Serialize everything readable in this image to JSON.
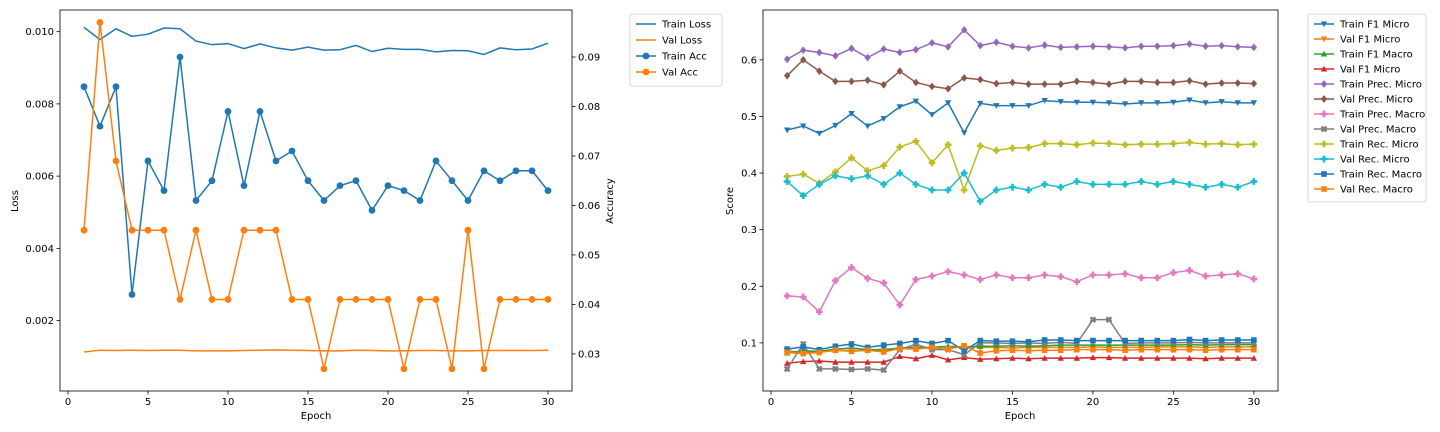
{
  "chart_data": [
    {
      "type": "line",
      "xlabel": "Epoch",
      "ylabel": "Loss",
      "y2label": "Accuracy",
      "xlim": [
        -0.5,
        31.5
      ],
      "ylim": [
        5e-05,
        0.0106
      ],
      "y2lim": [
        0.0225,
        0.0995
      ],
      "xticks": [
        0,
        5,
        10,
        15,
        20,
        25,
        30
      ],
      "yticks": [
        0.002,
        0.004,
        0.006,
        0.008,
        0.01
      ],
      "ytick_labels": [
        "0.002",
        "0.004",
        "0.006",
        "0.008",
        "0.010"
      ],
      "y2ticks": [
        0.03,
        0.04,
        0.05,
        0.06,
        0.07,
        0.08,
        0.09
      ],
      "y2tick_labels": [
        "0.03",
        "0.04",
        "0.05",
        "0.06",
        "0.07",
        "0.08",
        "0.09"
      ],
      "legend_position": "outside-right",
      "x": [
        1,
        2,
        3,
        4,
        5,
        6,
        7,
        8,
        9,
        10,
        11,
        12,
        13,
        14,
        15,
        16,
        17,
        18,
        19,
        20,
        21,
        22,
        23,
        24,
        25,
        26,
        27,
        28,
        29,
        30
      ],
      "series": [
        {
          "name": "Train Loss",
          "axis": "left",
          "color": "#1f77b4",
          "marker": "none",
          "values": [
            0.01012,
            0.00978,
            0.01008,
            0.00987,
            0.00993,
            0.0101,
            0.01008,
            0.00974,
            0.00964,
            0.00967,
            0.00953,
            0.00966,
            0.00955,
            0.00949,
            0.00957,
            0.00949,
            0.0095,
            0.00962,
            0.00945,
            0.00954,
            0.00951,
            0.00951,
            0.00944,
            0.00948,
            0.00947,
            0.00937,
            0.00955,
            0.0095,
            0.00952,
            0.00968
          ]
        },
        {
          "name": "Val Loss",
          "axis": "left",
          "color": "#ff7f0e",
          "marker": "none",
          "values": [
            0.00113,
            0.00118,
            0.00117,
            0.00118,
            0.00117,
            0.00118,
            0.00118,
            0.00116,
            0.00116,
            0.00116,
            0.00117,
            0.00118,
            0.00119,
            0.00118,
            0.00117,
            0.00116,
            0.00116,
            0.00118,
            0.00117,
            0.00116,
            0.00116,
            0.00117,
            0.00117,
            0.00116,
            0.00116,
            0.00117,
            0.00117,
            0.00117,
            0.00117,
            0.00118
          ]
        },
        {
          "name": "Train Acc",
          "axis": "right",
          "color": "#1f77b4",
          "marker": "circle",
          "values": [
            0.084,
            0.076,
            0.084,
            0.042,
            0.069,
            0.063,
            0.09,
            0.061,
            0.065,
            0.079,
            0.064,
            0.079,
            0.069,
            0.071,
            0.065,
            0.061,
            0.064,
            0.065,
            0.059,
            0.064,
            0.063,
            0.061,
            0.069,
            0.065,
            0.061,
            0.067,
            0.065,
            0.067,
            0.067,
            0.063
          ]
        },
        {
          "name": "Val Acc",
          "axis": "right",
          "color": "#ff7f0e",
          "marker": "circle",
          "values": [
            0.055,
            0.097,
            0.069,
            0.055,
            0.055,
            0.055,
            0.041,
            0.055,
            0.041,
            0.041,
            0.055,
            0.055,
            0.055,
            0.041,
            0.041,
            0.027,
            0.041,
            0.041,
            0.041,
            0.041,
            0.027,
            0.041,
            0.041,
            0.027,
            0.055,
            0.027,
            0.041,
            0.041,
            0.041,
            0.041
          ]
        }
      ]
    },
    {
      "type": "line",
      "xlabel": "Epoch",
      "ylabel": "Score",
      "xlim": [
        -0.5,
        31.5
      ],
      "ylim": [
        0.015,
        0.688
      ],
      "xticks": [
        0,
        5,
        10,
        15,
        20,
        25,
        30
      ],
      "yticks": [
        0.1,
        0.2,
        0.3,
        0.4,
        0.5,
        0.6
      ],
      "ytick_labels": [
        "0.1",
        "0.2",
        "0.3",
        "0.4",
        "0.5",
        "0.6"
      ],
      "legend_position": "outside-right",
      "x": [
        1,
        2,
        3,
        4,
        5,
        6,
        7,
        8,
        9,
        10,
        11,
        12,
        13,
        14,
        15,
        16,
        17,
        18,
        19,
        20,
        21,
        22,
        23,
        24,
        25,
        26,
        27,
        28,
        29,
        30
      ],
      "series": [
        {
          "name": "Train F1 Micro",
          "color": "#1f77b4",
          "marker": "tri-down",
          "values": [
            0.476,
            0.483,
            0.47,
            0.484,
            0.505,
            0.483,
            0.496,
            0.517,
            0.527,
            0.503,
            0.524,
            0.471,
            0.523,
            0.519,
            0.519,
            0.519,
            0.528,
            0.526,
            0.525,
            0.525,
            0.524,
            0.522,
            0.524,
            0.524,
            0.525,
            0.529,
            0.524,
            0.526,
            0.524,
            0.524
          ]
        },
        {
          "name": "Val F1 Micro",
          "color": "#ff7f0e",
          "marker": "tri-down",
          "values": [
            0.086,
            0.083,
            0.085,
            0.086,
            0.087,
            0.086,
            0.086,
            0.091,
            0.09,
            0.091,
            0.09,
            0.094,
            0.092,
            0.092,
            0.091,
            0.092,
            0.092,
            0.092,
            0.092,
            0.093,
            0.092,
            0.092,
            0.092,
            0.093,
            0.093,
            0.093,
            0.092,
            0.093,
            0.093,
            0.093
          ]
        },
        {
          "name": "Train F1 Macro",
          "color": "#2ca02c",
          "marker": "tri-up",
          "values": [
            0.082,
            0.086,
            0.085,
            0.089,
            0.091,
            0.088,
            0.088,
            0.091,
            0.092,
            0.092,
            0.094,
            0.092,
            0.094,
            0.094,
            0.095,
            0.094,
            0.095,
            0.096,
            0.096,
            0.096,
            0.096,
            0.096,
            0.096,
            0.096,
            0.096,
            0.097,
            0.096,
            0.097,
            0.097,
            0.097
          ]
        },
        {
          "name": "Val F1 Micro",
          "color": "#d62728",
          "marker": "tri-up",
          "values": [
            0.064,
            0.067,
            0.068,
            0.066,
            0.066,
            0.066,
            0.066,
            0.076,
            0.072,
            0.078,
            0.07,
            0.074,
            0.071,
            0.072,
            0.073,
            0.072,
            0.073,
            0.073,
            0.073,
            0.074,
            0.074,
            0.073,
            0.073,
            0.073,
            0.073,
            0.073,
            0.072,
            0.073,
            0.073,
            0.073
          ]
        },
        {
          "name": "Train Prec. Micro",
          "color": "#9467bd",
          "marker": "diamond",
          "values": [
            0.601,
            0.617,
            0.613,
            0.607,
            0.62,
            0.604,
            0.619,
            0.613,
            0.618,
            0.63,
            0.623,
            0.653,
            0.625,
            0.631,
            0.624,
            0.621,
            0.626,
            0.622,
            0.623,
            0.624,
            0.623,
            0.621,
            0.624,
            0.624,
            0.625,
            0.628,
            0.624,
            0.625,
            0.623,
            0.622
          ]
        },
        {
          "name": "Val Prec. Micro",
          "color": "#8c564b",
          "marker": "diamond",
          "values": [
            0.572,
            0.6,
            0.58,
            0.562,
            0.562,
            0.564,
            0.556,
            0.58,
            0.56,
            0.553,
            0.549,
            0.568,
            0.565,
            0.558,
            0.56,
            0.557,
            0.557,
            0.557,
            0.562,
            0.56,
            0.557,
            0.562,
            0.562,
            0.56,
            0.56,
            0.563,
            0.557,
            0.559,
            0.559,
            0.558
          ]
        },
        {
          "name": "Train Prec. Macro",
          "color": "#e377c2",
          "marker": "plus-filled",
          "values": [
            0.183,
            0.181,
            0.155,
            0.21,
            0.233,
            0.214,
            0.206,
            0.167,
            0.212,
            0.218,
            0.226,
            0.22,
            0.212,
            0.22,
            0.215,
            0.215,
            0.22,
            0.217,
            0.208,
            0.22,
            0.22,
            0.222,
            0.215,
            0.215,
            0.224,
            0.228,
            0.218,
            0.22,
            0.222,
            0.213
          ]
        },
        {
          "name": "Val Prec. Macro",
          "color": "#7f7f7f",
          "marker": "x-filled",
          "values": [
            0.054,
            0.098,
            0.054,
            0.054,
            0.053,
            0.054,
            0.052,
            0.088,
            0.098,
            0.088,
            0.088,
            0.079,
            0.1,
            0.1,
            0.099,
            0.1,
            0.099,
            0.101,
            0.099,
            0.141,
            0.141,
            0.099,
            0.1,
            0.1,
            0.1,
            0.101,
            0.1,
            0.1,
            0.1,
            0.1
          ]
        },
        {
          "name": "Train Rec. Micro",
          "color": "#bcbd22",
          "marker": "plus-filled",
          "values": [
            0.394,
            0.398,
            0.382,
            0.402,
            0.427,
            0.404,
            0.413,
            0.446,
            0.456,
            0.418,
            0.45,
            0.37,
            0.448,
            0.44,
            0.444,
            0.445,
            0.452,
            0.452,
            0.45,
            0.453,
            0.452,
            0.45,
            0.451,
            0.451,
            0.452,
            0.454,
            0.451,
            0.452,
            0.45,
            0.451
          ]
        },
        {
          "name": "Val Rec. Micro",
          "color": "#17becf",
          "marker": "plus-filled",
          "values": [
            0.385,
            0.36,
            0.38,
            0.395,
            0.39,
            0.395,
            0.38,
            0.4,
            0.38,
            0.37,
            0.37,
            0.4,
            0.35,
            0.37,
            0.375,
            0.37,
            0.38,
            0.375,
            0.385,
            0.38,
            0.38,
            0.38,
            0.385,
            0.38,
            0.385,
            0.38,
            0.375,
            0.38,
            0.375,
            0.385
          ]
        },
        {
          "name": "Train Rec. Macro",
          "color": "#1f77b4",
          "marker": "square",
          "values": [
            0.089,
            0.093,
            0.088,
            0.094,
            0.098,
            0.092,
            0.096,
            0.099,
            0.104,
            0.099,
            0.104,
            0.086,
            0.104,
            0.103,
            0.103,
            0.102,
            0.105,
            0.105,
            0.104,
            0.104,
            0.104,
            0.104,
            0.104,
            0.104,
            0.104,
            0.106,
            0.104,
            0.105,
            0.105,
            0.105
          ]
        },
        {
          "name": "Val Rec. Macro",
          "color": "#ff7f0e",
          "marker": "square",
          "values": [
            0.083,
            0.081,
            0.083,
            0.087,
            0.085,
            0.087,
            0.084,
            0.09,
            0.089,
            0.092,
            0.089,
            0.095,
            0.082,
            0.086,
            0.087,
            0.086,
            0.087,
            0.087,
            0.088,
            0.088,
            0.088,
            0.087,
            0.088,
            0.088,
            0.088,
            0.088,
            0.087,
            0.088,
            0.088,
            0.088
          ]
        }
      ]
    }
  ]
}
